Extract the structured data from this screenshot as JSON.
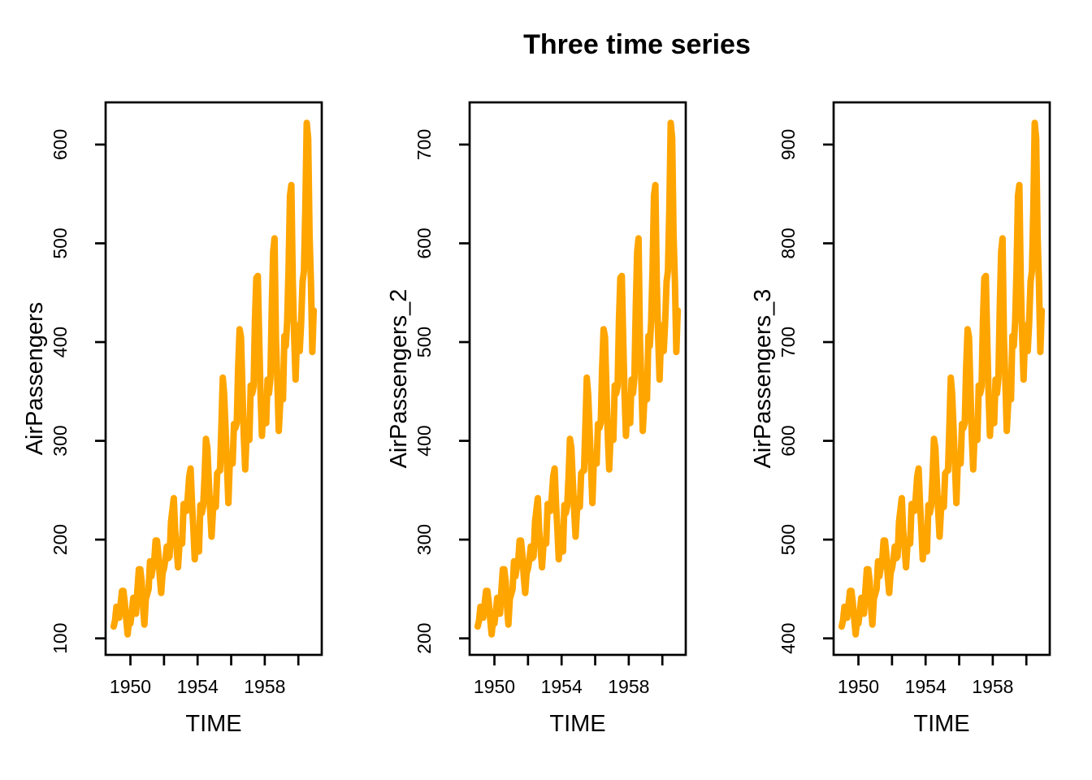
{
  "chart_data": {
    "type": "line",
    "title": "Three time series",
    "x": {
      "label": "TIME",
      "start": 1949,
      "frequency": 12,
      "ticks": [
        1950,
        1952,
        1954,
        1956,
        1958,
        1960
      ],
      "labeled_ticks": [
        1950,
        1954,
        1958
      ],
      "range": [
        1949,
        1960.9167
      ]
    },
    "layout": {
      "grid": false,
      "legend": "none",
      "axis_range_expansion": 0.04
    },
    "colors": {
      "line": "#FFA500",
      "axis": "#000000",
      "text": "#000000",
      "background": "#FFFFFF"
    },
    "panels": [
      {
        "ylabel": "AirPassengers",
        "yticks": [
          100,
          200,
          300,
          400,
          500,
          600
        ],
        "ylim_data": [
          104,
          622
        ],
        "values": [
          112,
          118,
          132,
          129,
          121,
          135,
          148,
          148,
          136,
          119,
          104,
          118,
          115,
          126,
          141,
          135,
          125,
          149,
          170,
          170,
          158,
          133,
          114,
          140,
          145,
          150,
          178,
          163,
          172,
          178,
          199,
          199,
          184,
          162,
          146,
          166,
          171,
          180,
          193,
          181,
          183,
          218,
          230,
          242,
          209,
          191,
          172,
          194,
          196,
          196,
          236,
          235,
          229,
          243,
          264,
          272,
          237,
          211,
          180,
          201,
          204,
          188,
          235,
          227,
          234,
          264,
          302,
          293,
          259,
          229,
          203,
          229,
          242,
          233,
          267,
          269,
          270,
          315,
          364,
          347,
          312,
          274,
          237,
          278,
          284,
          277,
          317,
          313,
          318,
          374,
          413,
          405,
          355,
          306,
          271,
          306,
          315,
          301,
          356,
          348,
          355,
          422,
          465,
          467,
          404,
          347,
          305,
          336,
          340,
          318,
          362,
          348,
          363,
          435,
          491,
          505,
          404,
          359,
          310,
          337,
          360,
          342,
          406,
          396,
          420,
          472,
          548,
          559,
          463,
          407,
          362,
          405,
          417,
          391,
          419,
          461,
          472,
          535,
          622,
          606,
          508,
          461,
          390,
          432
        ]
      },
      {
        "ylabel": "AirPassengers_2",
        "yticks": [
          200,
          300,
          400,
          500,
          600,
          700
        ],
        "ylim_data": [
          204,
          722
        ],
        "values": [
          212,
          218,
          232,
          229,
          221,
          235,
          248,
          248,
          236,
          219,
          204,
          218,
          215,
          226,
          241,
          235,
          225,
          249,
          270,
          270,
          258,
          233,
          214,
          240,
          245,
          250,
          278,
          263,
          272,
          278,
          299,
          299,
          284,
          262,
          246,
          266,
          271,
          280,
          293,
          281,
          283,
          318,
          330,
          342,
          309,
          291,
          272,
          294,
          296,
          296,
          336,
          335,
          329,
          343,
          364,
          372,
          337,
          311,
          280,
          301,
          304,
          288,
          335,
          327,
          334,
          364,
          402,
          393,
          359,
          329,
          303,
          329,
          342,
          333,
          367,
          369,
          370,
          415,
          464,
          447,
          412,
          374,
          337,
          378,
          384,
          377,
          417,
          413,
          418,
          474,
          513,
          505,
          455,
          406,
          371,
          406,
          415,
          401,
          456,
          448,
          455,
          522,
          565,
          567,
          504,
          447,
          405,
          436,
          440,
          418,
          462,
          448,
          463,
          535,
          591,
          605,
          504,
          459,
          410,
          437,
          460,
          442,
          506,
          496,
          520,
          572,
          648,
          659,
          563,
          507,
          462,
          505,
          517,
          491,
          519,
          561,
          572,
          635,
          722,
          706,
          608,
          561,
          490,
          532
        ]
      },
      {
        "ylabel": "AirPassengers_3",
        "yticks": [
          400,
          500,
          600,
          700,
          800,
          900
        ],
        "ylim_data": [
          404,
          922
        ],
        "values": [
          412,
          418,
          432,
          429,
          421,
          435,
          448,
          448,
          436,
          419,
          404,
          418,
          415,
          426,
          441,
          435,
          425,
          449,
          470,
          470,
          458,
          433,
          414,
          440,
          445,
          450,
          478,
          463,
          472,
          478,
          499,
          499,
          484,
          462,
          446,
          466,
          471,
          480,
          493,
          481,
          483,
          518,
          530,
          542,
          509,
          491,
          472,
          494,
          496,
          496,
          536,
          535,
          529,
          543,
          564,
          572,
          537,
          511,
          480,
          501,
          504,
          488,
          535,
          527,
          534,
          564,
          602,
          593,
          559,
          529,
          503,
          529,
          542,
          533,
          567,
          569,
          570,
          615,
          664,
          647,
          612,
          574,
          537,
          578,
          584,
          577,
          617,
          613,
          618,
          674,
          713,
          705,
          655,
          606,
          571,
          606,
          615,
          601,
          656,
          648,
          655,
          722,
          765,
          767,
          704,
          647,
          605,
          636,
          640,
          618,
          662,
          648,
          663,
          735,
          791,
          805,
          704,
          659,
          610,
          637,
          660,
          642,
          706,
          696,
          720,
          772,
          848,
          859,
          763,
          707,
          662,
          705,
          717,
          691,
          719,
          761,
          772,
          835,
          922,
          906,
          808,
          761,
          690,
          732
        ]
      }
    ]
  }
}
